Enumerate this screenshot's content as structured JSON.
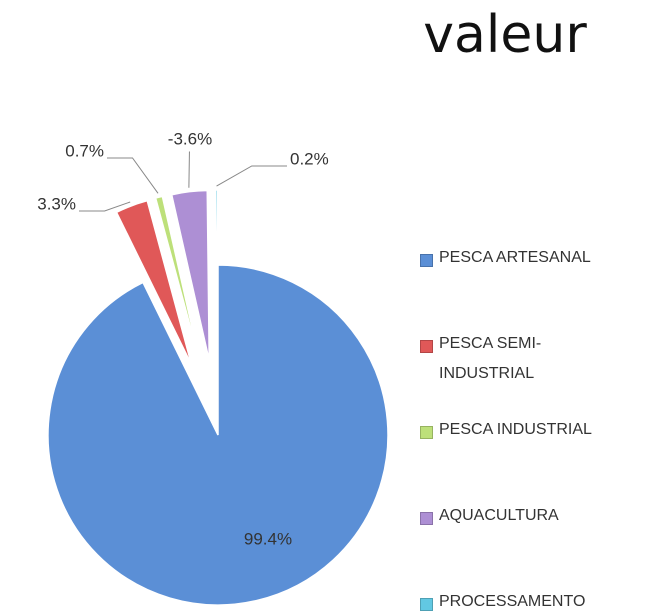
{
  "chart_data": {
    "type": "pie",
    "title": "valeur",
    "categories": [
      "PESCA ARTESANAL",
      "PESCA SEMI-INDUSTRIAL",
      "PESCA INDUSTRIAL",
      "AQUACULTURA",
      "PROCESSAMENTO"
    ],
    "values": [
      99.4,
      3.3,
      0.7,
      -3.6,
      0.2
    ],
    "value_labels": [
      "99.4%",
      "3.3%",
      "0.7%",
      "-3.6%",
      "0.2%"
    ],
    "colors": [
      "#5b8fd6",
      "#e05858",
      "#bde07a",
      "#ad8fd4",
      "#62c8e2"
    ],
    "legend": "right"
  }
}
